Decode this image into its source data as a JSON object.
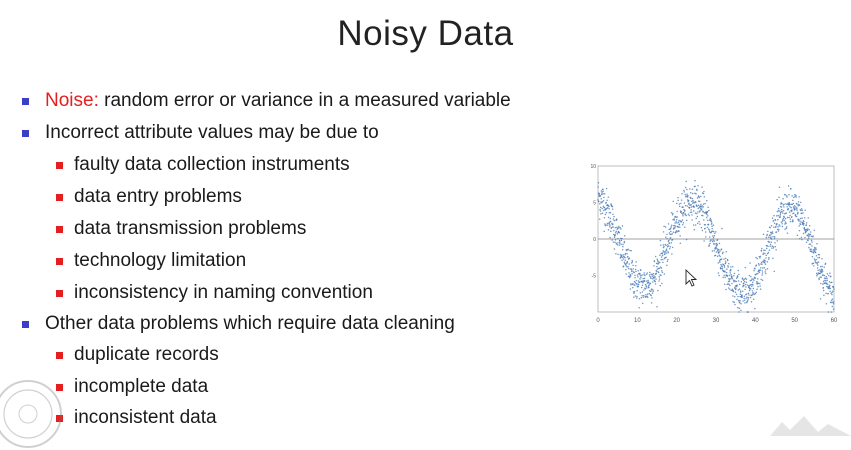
{
  "slide": {
    "title": "Noisy Data"
  },
  "bullets": [
    {
      "level": 1,
      "prefix": "Noise:",
      "text": " random error or variance in a measured variable"
    },
    {
      "level": 1,
      "prefix": "",
      "text": "Incorrect attribute values may be due to"
    },
    {
      "level": 2,
      "prefix": "",
      "text": "faulty data collection instruments"
    },
    {
      "level": 2,
      "prefix": "",
      "text": "data entry problems"
    },
    {
      "level": 2,
      "prefix": "",
      "text": "data transmission problems"
    },
    {
      "level": 2,
      "prefix": "",
      "text": "technology limitation"
    },
    {
      "level": 2,
      "prefix": "",
      "text": "inconsistency in naming convention"
    },
    {
      "level": 1,
      "prefix": "",
      "text": "Other data problems which require data cleaning"
    },
    {
      "level": 2,
      "prefix": "",
      "text": "duplicate records"
    },
    {
      "level": 2,
      "prefix": "",
      "text": "incomplete data"
    },
    {
      "level": 2,
      "prefix": "",
      "text": "inconsistent data"
    }
  ],
  "colors": {
    "level1_marker": "#3b3fc7",
    "level2_marker": "#e41f1f",
    "noise_label": "#e41f1f",
    "scatter_points": "#4a7ab5"
  },
  "chart_data": {
    "type": "scatter",
    "title": "",
    "xlabel": "",
    "ylabel": "",
    "xlim": [
      0,
      60
    ],
    "ylim": [
      -10,
      10
    ],
    "x_ticks": [
      "0",
      "10",
      "20",
      "30",
      "40",
      "50",
      "60"
    ],
    "y_ticks": [
      "10",
      "5",
      "0",
      "-5"
    ],
    "grid": false,
    "zero_line": true,
    "underlying_signal": {
      "amplitude": 6,
      "period": 25,
      "trend_per_unit": -0.04,
      "noise_sd": 1.4
    },
    "series": [
      {
        "values_sampled": [
          [
            0,
            6.8
          ],
          [
            2,
            7.4
          ],
          [
            4,
            3.5
          ],
          [
            6,
            4.9
          ],
          [
            8,
            6.9
          ],
          [
            10,
            5.3
          ],
          [
            12,
            1.3
          ],
          [
            14,
            -2.1
          ],
          [
            16,
            -4.8
          ],
          [
            18,
            -5.8
          ],
          [
            20,
            -4.9
          ],
          [
            22,
            -3.1
          ],
          [
            24,
            -2.8
          ],
          [
            26,
            0.8
          ],
          [
            28,
            4.7
          ],
          [
            30,
            5.4
          ],
          [
            32,
            5.8
          ],
          [
            34,
            6.7
          ],
          [
            36,
            4.1
          ],
          [
            38,
            2.7
          ],
          [
            40,
            -1.5
          ],
          [
            42,
            -3.6
          ],
          [
            44,
            -5.6
          ],
          [
            46,
            -4.7
          ],
          [
            48,
            -3.1
          ],
          [
            50,
            -0.9
          ],
          [
            52,
            1.2
          ],
          [
            54,
            3.4
          ],
          [
            56,
            5.1
          ],
          [
            58,
            5.9
          ],
          [
            60,
            4.0
          ]
        ]
      }
    ]
  }
}
